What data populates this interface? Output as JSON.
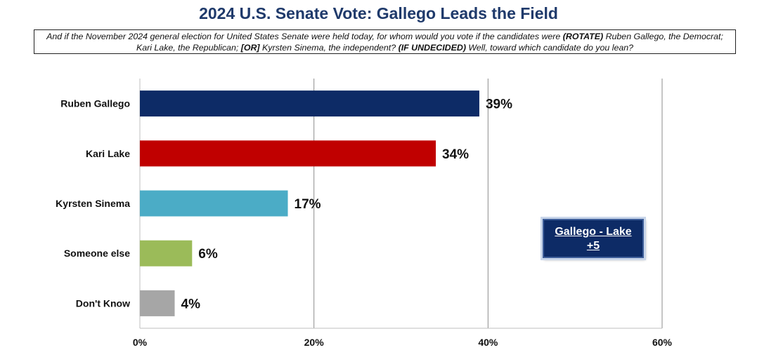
{
  "title": "2024 U.S. Senate Vote: Gallego Leads the Field",
  "question": {
    "part1": "And if the November 2024 general election for United States Senate were held today, for whom would you vote if the candidates were ",
    "rotate": "(ROTATE)",
    "part2": " Ruben Gallego, the Democrat; Kari Lake, the Republican; ",
    "or": "[OR]",
    "part3": " Kyrsten Sinema, the independent? ",
    "undecided": "(IF UNDECIDED)",
    "part4": " Well, toward which candidate do you lean?"
  },
  "callout": {
    "line1": "Gallego - Lake",
    "line2": "+5"
  },
  "chart_data": {
    "type": "bar",
    "orientation": "horizontal",
    "categories": [
      "Ruben Gallego",
      "Kari Lake",
      "Kyrsten Sinema",
      "Someone else",
      "Don't Know"
    ],
    "values": [
      39,
      34,
      17,
      6,
      4
    ],
    "value_labels": [
      "39%",
      "34%",
      "17%",
      "6%",
      "4%"
    ],
    "colors": [
      "#0d2b66",
      "#c00000",
      "#4bacc6",
      "#9bbb59",
      "#a6a6a6"
    ],
    "xlim": [
      0,
      60
    ],
    "xticks": [
      0,
      20,
      40,
      60
    ],
    "xtick_labels": [
      "0%",
      "20%",
      "40%",
      "60%"
    ],
    "grid": "vertical",
    "title": "2024 U.S. Senate Vote: Gallego Leads the Field",
    "xlabel": "",
    "ylabel": ""
  }
}
